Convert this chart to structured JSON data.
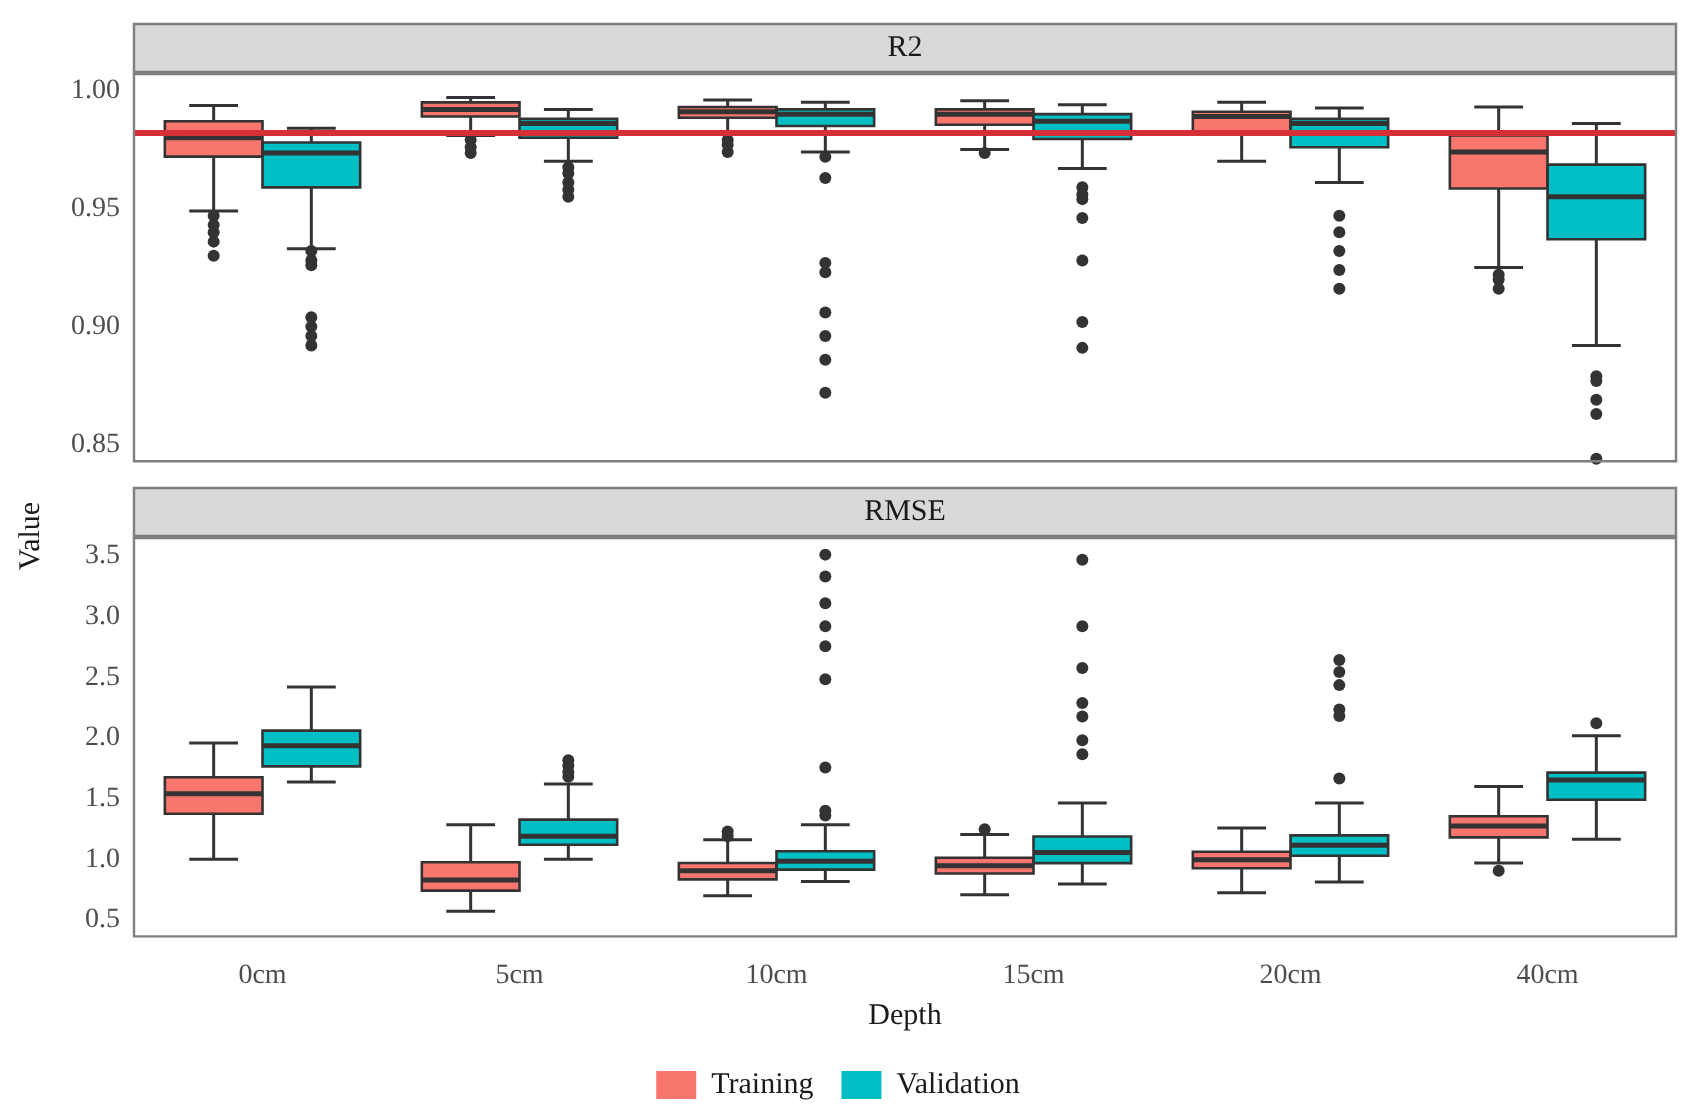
{
  "chart_data": [
    {
      "type": "box",
      "title": "R2",
      "ylabel": "Value",
      "categories": [
        null,
        null,
        null,
        null,
        null,
        null
      ],
      "ylim": [
        0.843,
        1.007
      ],
      "yticks": [
        {
          "value": 0.85,
          "label": "0.85"
        },
        {
          "value": 0.9,
          "label": "0.90"
        },
        {
          "value": 0.95,
          "label": "0.95"
        },
        {
          "value": 1.0,
          "label": "1.00"
        }
      ],
      "grid": false,
      "tick_labels": "y",
      "ref_lines": [
        {
          "axis": "y",
          "value": 0.982,
          "color": "#d62f36"
        }
      ],
      "series": [
        {
          "color": "#f8766d",
          "boxes": [
            {
              "low": 0.949,
              "q1": 0.972,
              "median": 0.98,
              "q3": 0.987,
              "high": 0.9937,
              "outliers": [
                0.947,
                0.943,
                0.94,
                0.936,
                0.93
              ]
            },
            {
              "low": 0.981,
              "q1": 0.989,
              "median": 0.992,
              "q3": 0.995,
              "high": 0.997,
              "outliers": [
                0.979,
                0.976,
                0.9735
              ]
            },
            {
              "low": 0.982,
              "q1": 0.9885,
              "median": 0.991,
              "q3": 0.993,
              "high": 0.996,
              "outliers": [
                0.979,
                0.977,
                0.974
              ]
            },
            {
              "low": 0.975,
              "q1": 0.9855,
              "median": 0.99,
              "q3": 0.992,
              "high": 0.9957,
              "outliers": [
                0.9735
              ]
            },
            {
              "low": 0.97,
              "q1": 0.982,
              "median": 0.989,
              "q3": 0.991,
              "high": 0.995
            },
            {
              "low": 0.925,
              "q1": 0.9585,
              "median": 0.974,
              "q3": 0.981,
              "high": 0.993,
              "outliers": [
                0.922,
                0.92,
                0.916
              ]
            }
          ]
        },
        {
          "color": "#00bfc4",
          "boxes": [
            {
              "low": 0.933,
              "q1": 0.959,
              "median": 0.9735,
              "q3": 0.978,
              "high": 0.984,
              "outliers": [
                0.932,
                0.928,
                0.926,
                0.904,
                0.9,
                0.896,
                0.892
              ]
            },
            {
              "low": 0.97,
              "q1": 0.98,
              "median": 0.986,
              "q3": 0.988,
              "high": 0.992,
              "outliers": [
                0.9675,
                0.965,
                0.961,
                0.958,
                0.955
              ]
            },
            {
              "low": 0.974,
              "q1": 0.985,
              "median": 0.99,
              "q3": 0.992,
              "high": 0.995,
              "outliers": [
                0.972,
                0.963,
                0.927,
                0.923,
                0.906,
                0.896,
                0.886,
                0.872
              ]
            },
            {
              "low": 0.967,
              "q1": 0.9795,
              "median": 0.987,
              "q3": 0.99,
              "high": 0.994,
              "outliers": [
                0.959,
                0.956,
                0.954,
                0.946,
                0.928,
                0.902,
                0.891
              ]
            },
            {
              "low": 0.961,
              "q1": 0.976,
              "median": 0.986,
              "q3": 0.988,
              "high": 0.9926,
              "outliers": [
                0.947,
                0.94,
                0.932,
                0.924,
                0.916
              ]
            },
            {
              "low": 0.892,
              "q1": 0.937,
              "median": 0.955,
              "q3": 0.9686,
              "high": 0.986,
              "outliers": [
                0.879,
                0.877,
                0.869,
                0.863,
                0.844
              ]
            }
          ]
        }
      ]
    },
    {
      "type": "box",
      "title": "RMSE",
      "xlabel": "Depth",
      "categories": [
        "0cm",
        "5cm",
        "10cm",
        "15cm",
        "20cm",
        "40cm"
      ],
      "ylim": [
        0.365,
        3.647
      ],
      "yticks": [
        {
          "value": 0.5,
          "label": "0.5"
        },
        {
          "value": 1.0,
          "label": "1.0"
        },
        {
          "value": 1.5,
          "label": "1.5"
        },
        {
          "value": 2.0,
          "label": "2.0"
        },
        {
          "value": 2.5,
          "label": "2.5"
        },
        {
          "value": 3.0,
          "label": "3.0"
        },
        {
          "value": 3.5,
          "label": "3.5"
        }
      ],
      "grid": false,
      "legend": "bottom",
      "series": [
        {
          "name": "Training",
          "color": "#f8766d",
          "boxes": [
            {
              "low": 1.0,
              "q1": 1.376,
              "median": 1.54,
              "q3": 1.676,
              "high": 1.958
            },
            {
              "low": 0.573,
              "q1": 0.742,
              "median": 0.83,
              "q3": 0.976,
              "high": 1.285
            },
            {
              "low": 0.7,
              "q1": 0.835,
              "median": 0.905,
              "q3": 0.97,
              "high": 1.162,
              "outliers": [
                1.23,
                1.19
              ]
            },
            {
              "low": 0.709,
              "q1": 0.883,
              "median": 0.948,
              "q3": 1.013,
              "high": 1.204,
              "outliers": [
                1.247
              ]
            },
            {
              "low": 0.725,
              "q1": 0.927,
              "median": 0.997,
              "q3": 1.062,
              "high": 1.257
            },
            {
              "low": 0.97,
              "q1": 1.181,
              "median": 1.274,
              "q3": 1.355,
              "high": 1.599,
              "outliers": [
                0.905
              ]
            }
          ]
        },
        {
          "name": "Validation",
          "color": "#00bfc4",
          "boxes": [
            {
              "low": 1.637,
              "q1": 1.766,
              "median": 1.936,
              "q3": 2.06,
              "high": 2.419
            },
            {
              "low": 1.0,
              "q1": 1.12,
              "median": 1.19,
              "q3": 1.327,
              "high": 1.62,
              "outliers": [
                1.816,
                1.77,
                1.72,
                1.68
              ]
            },
            {
              "low": 0.818,
              "q1": 0.915,
              "median": 0.985,
              "q3": 1.067,
              "high": 1.285,
              "outliers": [
                3.51,
                3.33,
                3.11,
                2.92,
                2.755,
                2.484,
                1.757,
                1.4,
                1.36
              ]
            },
            {
              "low": 0.796,
              "q1": 0.969,
              "median": 1.057,
              "q3": 1.188,
              "high": 1.464,
              "outliers": [
                3.467,
                2.92,
                2.577,
                2.287,
                2.176,
                1.98,
                1.865
              ]
            },
            {
              "low": 0.813,
              "q1": 1.029,
              "median": 1.116,
              "q3": 1.197,
              "high": 1.464,
              "outliers": [
                2.642,
                2.544,
                2.435,
                2.235,
                2.18,
                1.665
              ]
            },
            {
              "low": 1.166,
              "q1": 1.491,
              "median": 1.654,
              "q3": 1.714,
              "high": 2.018,
              "outliers": [
                2.12
              ]
            }
          ]
        }
      ]
    }
  ]
}
